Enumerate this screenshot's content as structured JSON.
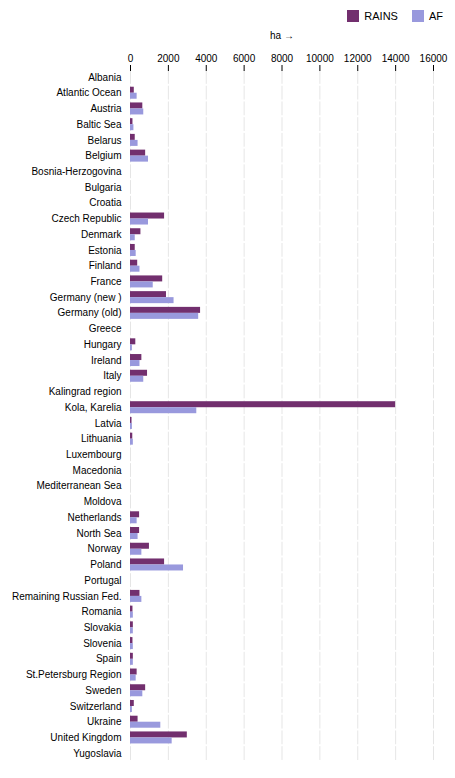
{
  "chart_data": {
    "type": "bar",
    "orientation": "horizontal",
    "categories": [
      "Albania",
      "Atlantic Ocean",
      "Austria",
      "Baltic Sea",
      "Belarus",
      "Belgium",
      "Bosnia-Herzogovina",
      "Bulgaria",
      "Croatia",
      "Czech Republic",
      "Denmark",
      "Estonia",
      "Finland",
      "France",
      "Germany (new )",
      "Germany (old)",
      "Greece",
      "Hungary",
      "Ireland",
      "Italy",
      "Kalingrad region",
      "Kola, Karelia",
      "Latvia",
      "Lithuania",
      "Luxembourg",
      "Macedonia",
      "Mediterranean Sea",
      "Moldova",
      "Netherlands",
      "North Sea",
      "Norway",
      "Poland",
      "Portugal",
      "Remaining Russian Fed.",
      "Romania",
      "Slovakia",
      "Slovenia",
      "Spain",
      "St.Petersburg Region",
      "Sweden",
      "Switzerland",
      "Ukraine",
      "United Kingdom",
      "Yugoslavia"
    ],
    "series": [
      {
        "name": "RAINS",
        "color": "#722F6E",
        "values": [
          0,
          200,
          650,
          130,
          250,
          800,
          0,
          0,
          0,
          1800,
          550,
          250,
          380,
          1700,
          1900,
          3700,
          0,
          280,
          600,
          900,
          0,
          14000,
          80,
          120,
          0,
          0,
          0,
          0,
          480,
          480,
          1000,
          1800,
          0,
          500,
          130,
          150,
          130,
          150,
          350,
          800,
          200,
          400,
          3000,
          0
        ]
      },
      {
        "name": "AF",
        "color": "#9999DD",
        "values": [
          0,
          350,
          700,
          180,
          400,
          950,
          0,
          0,
          0,
          950,
          250,
          300,
          500,
          1200,
          2300,
          3600,
          0,
          100,
          500,
          700,
          0,
          3500,
          100,
          150,
          0,
          0,
          0,
          0,
          350,
          400,
          600,
          2800,
          0,
          600,
          150,
          150,
          150,
          150,
          300,
          650,
          100,
          1600,
          2200,
          0
        ]
      }
    ],
    "xlabel": "ha",
    "xlim": [
      0,
      16000
    ],
    "xticks": [
      0,
      2000,
      4000,
      6000,
      8000,
      10000,
      12000,
      14000,
      16000
    ],
    "grid": true,
    "legend": "right"
  }
}
